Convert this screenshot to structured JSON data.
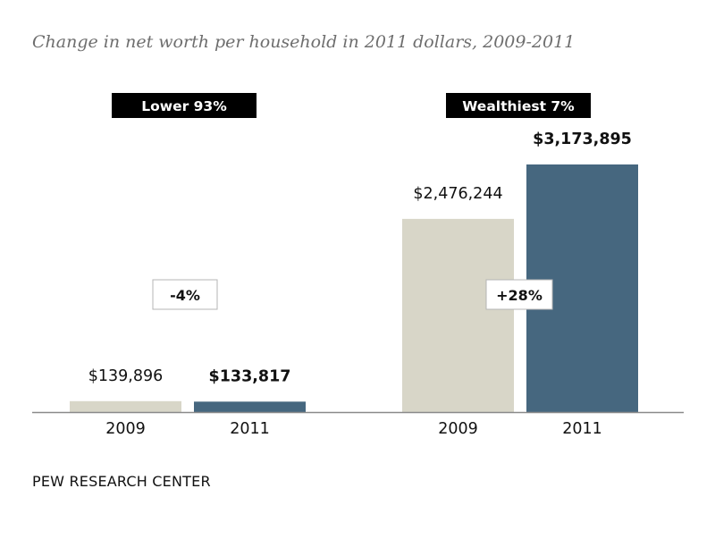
{
  "chart_data": {
    "type": "bar",
    "title": "Change in net worth per household in 2011 dollars, 2009-2011",
    "categories": [
      "2009",
      "2011"
    ],
    "groups": [
      {
        "name": "Lower 93%",
        "values": [
          139896,
          133817
        ],
        "value_labels": [
          "$139,896",
          "$133,817"
        ],
        "change_label": "-4%"
      },
      {
        "name": "Wealthiest 7%",
        "values": [
          2476244,
          3173895
        ],
        "value_labels": [
          "$2,476,244",
          "$3,173,895"
        ],
        "change_label": "+28%"
      }
    ],
    "ylim": [
      0,
      3173895
    ],
    "grid": false,
    "colors": {
      "2009": "#d8d6c8",
      "2011": "#46677f",
      "header_bg": "#000000",
      "header_text": "#ffffff"
    }
  },
  "footer": {
    "source": "PEW RESEARCH CENTER"
  }
}
